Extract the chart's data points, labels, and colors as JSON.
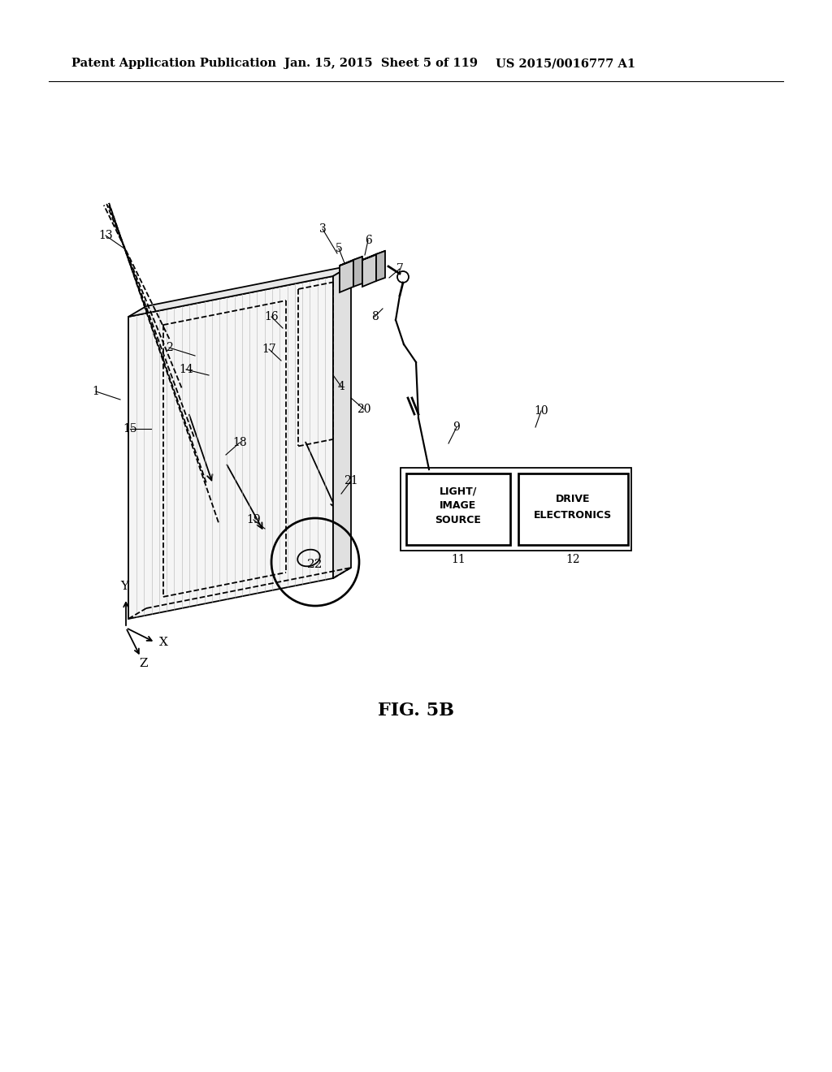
{
  "header_left": "Patent Application Publication",
  "header_middle": "Jan. 15, 2015  Sheet 5 of 119",
  "header_right": "US 2015/0016777 A1",
  "figure_label": "FIG. 5B",
  "bg_color": "#ffffff",
  "line_color": "#000000"
}
